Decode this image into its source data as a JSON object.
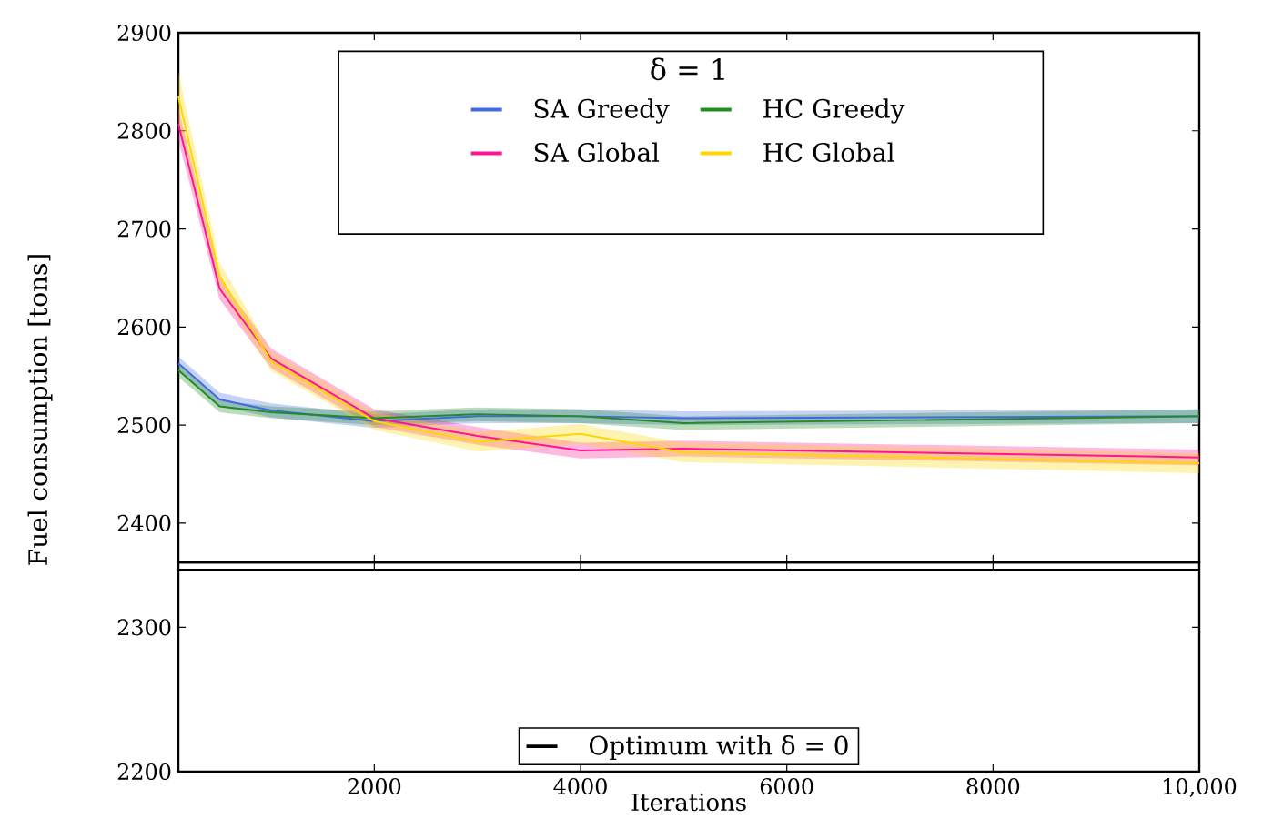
{
  "chart_data": [
    {
      "type": "line",
      "ylabel": "Fuel consumption [tons]",
      "legend_title": "δ = 1",
      "legend": "top",
      "tick_labels": "y",
      "x": [
        100,
        500,
        1000,
        2000,
        3000,
        4000,
        5000,
        10000
      ],
      "xlim": [
        100,
        10000
      ],
      "xticks": [
        2000,
        4000,
        6000,
        8000,
        10000
      ],
      "ylim": [
        2360,
        2900
      ],
      "yticks": [
        2400,
        2500,
        2600,
        2700,
        2800,
        2900
      ],
      "series": [
        {
          "name": "SA Greedy",
          "color": "#4169e1",
          "values": [
            2563,
            2526,
            2515,
            2504,
            2509,
            2509,
            2507,
            2509
          ],
          "lower": [
            2556,
            2519,
            2508,
            2497,
            2502,
            2502,
            2500,
            2502
          ],
          "upper": [
            2570,
            2533,
            2522,
            2511,
            2516,
            2516,
            2514,
            2516
          ]
        },
        {
          "name": "SA Global",
          "color": "#ff1493",
          "values": [
            2807,
            2639,
            2568,
            2507,
            2489,
            2474,
            2476,
            2467
          ],
          "lower": [
            2790,
            2628,
            2558,
            2498,
            2480,
            2466,
            2468,
            2459
          ],
          "upper": [
            2824,
            2650,
            2578,
            2516,
            2498,
            2482,
            2484,
            2475
          ]
        },
        {
          "name": "HC Greedy",
          "color": "#228b22",
          "values": [
            2556,
            2519,
            2513,
            2507,
            2511,
            2509,
            2502,
            2509
          ],
          "lower": [
            2549,
            2513,
            2507,
            2500,
            2504,
            2502,
            2495,
            2502
          ],
          "upper": [
            2563,
            2525,
            2519,
            2514,
            2518,
            2516,
            2509,
            2516
          ]
        },
        {
          "name": "HC Global",
          "color": "#ffd700",
          "values": [
            2835,
            2652,
            2565,
            2504,
            2483,
            2491,
            2472,
            2461
          ],
          "lower": [
            2810,
            2638,
            2555,
            2495,
            2473,
            2481,
            2462,
            2451
          ],
          "upper": [
            2860,
            2666,
            2575,
            2513,
            2493,
            2501,
            2482,
            2471
          ]
        }
      ]
    },
    {
      "type": "line",
      "xlabel": "Iterations",
      "legend": "bottom",
      "xlim": [
        100,
        10000
      ],
      "xticks": [
        2000,
        4000,
        6000,
        8000,
        {
          "value": 10000,
          "label": "10,000"
        }
      ],
      "ylim": [
        2200,
        2345
      ],
      "yticks": [
        2200,
        2300
      ],
      "series": [
        {
          "name": "Optimum with δ = 0",
          "color": "#000000",
          "x": [
            100,
            10000
          ],
          "values": [
            2340,
            2340
          ]
        }
      ]
    }
  ]
}
